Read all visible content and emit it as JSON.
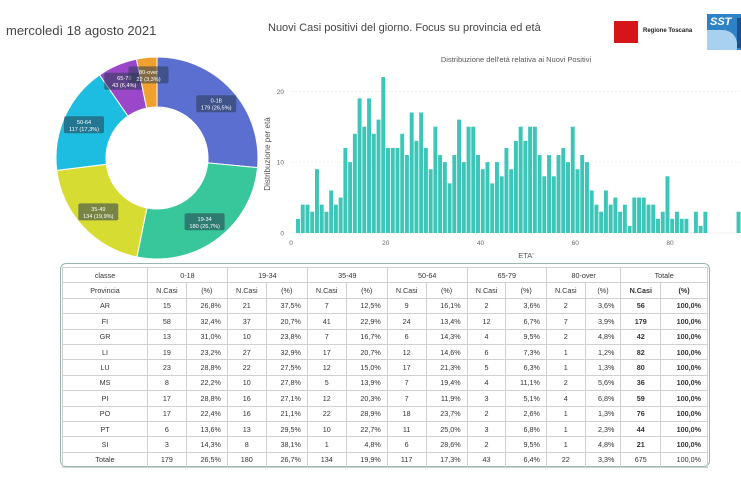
{
  "header": {
    "date": "mercoledì 18 agosto 2021",
    "title": "Nuovi Casi positivi del giorno. Focus su provincia ed età",
    "logo_regione": "Regione Toscana",
    "logo_sst": "SST"
  },
  "colors": {
    "donut": [
      "#5b6fd0",
      "#37c79b",
      "#d7dc33",
      "#1cbde0",
      "#9b47c9",
      "#f0a02c"
    ],
    "histogram": "#3cc6b7",
    "table_border": "#9bb5b0"
  },
  "chart_data": [
    {
      "type": "pie",
      "subtype": "donut",
      "slices": [
        {
          "label": "0-18",
          "value": 179,
          "text": "179 (26,5%)"
        },
        {
          "label": "19-34",
          "value": 180,
          "text": "180 (26,7%)"
        },
        {
          "label": "35-49",
          "value": 134,
          "text": "134 (19,9%)"
        },
        {
          "label": "50-64",
          "value": 117,
          "text": "117 (17,3%)"
        },
        {
          "label": "65-79",
          "value": 43,
          "text": "43 (6,4%)"
        },
        {
          "label": "80-over",
          "value": 22,
          "text": "22 (3,3%)"
        }
      ]
    },
    {
      "type": "bar",
      "title": "Distribuzione dell'età relativa ai Nuovi Positivi",
      "xlabel": "ETA'",
      "ylabel": "Distribuzione per età",
      "xlim": [
        0,
        95
      ],
      "ylim": [
        0,
        23
      ],
      "xticks": [
        0,
        20,
        40,
        60,
        80
      ],
      "yticks": [
        0,
        10,
        20
      ],
      "grid": true,
      "x": [
        0,
        1,
        2,
        3,
        4,
        5,
        6,
        7,
        8,
        9,
        10,
        11,
        12,
        13,
        14,
        15,
        16,
        17,
        18,
        19,
        20,
        21,
        22,
        23,
        24,
        25,
        26,
        27,
        28,
        29,
        30,
        31,
        32,
        33,
        34,
        35,
        36,
        37,
        38,
        39,
        40,
        41,
        42,
        43,
        44,
        45,
        46,
        47,
        48,
        49,
        50,
        51,
        52,
        53,
        54,
        55,
        56,
        57,
        58,
        59,
        60,
        61,
        62,
        63,
        64,
        65,
        66,
        67,
        68,
        69,
        70,
        71,
        72,
        73,
        74,
        75,
        76,
        77,
        78,
        79,
        80,
        81,
        82,
        83,
        84,
        85,
        86,
        87,
        88,
        89,
        90,
        91,
        92,
        93,
        94
      ],
      "values": [
        0,
        2,
        4,
        4,
        3,
        9,
        4,
        3,
        6,
        4,
        5,
        12,
        10,
        14,
        19,
        15,
        19,
        14,
        16,
        22,
        12,
        12,
        12,
        14,
        11,
        17,
        13,
        17,
        12,
        9,
        15,
        11,
        10,
        7,
        11,
        16,
        10,
        15,
        15,
        11,
        9,
        10,
        7,
        10,
        8,
        12,
        9,
        13,
        15,
        13,
        15,
        15,
        11,
        8,
        11,
        8,
        11,
        12,
        10,
        15,
        9,
        11,
        10,
        6,
        4,
        3,
        6,
        4,
        5,
        3,
        4,
        1,
        5,
        5,
        5,
        4,
        4,
        2,
        3,
        8,
        2,
        3,
        2,
        2,
        0,
        3,
        1,
        3,
        0,
        0,
        0,
        0,
        0,
        0,
        3
      ]
    }
  ],
  "table": {
    "headers_group": [
      "classe",
      "0-18",
      "19-34",
      "35-49",
      "50-64",
      "65-79",
      "80-over",
      "Totale"
    ],
    "headers_sub": [
      "Provincia",
      "N.Casi",
      "(%)",
      "N.Casi",
      "(%)",
      "N.Casi",
      "(%)",
      "N.Casi",
      "(%)",
      "N.Casi",
      "(%)",
      "N.Casi",
      "(%)",
      "N.Casi",
      "(%)"
    ],
    "rows": [
      [
        "AR",
        "15",
        "26,8%",
        "21",
        "37,5%",
        "7",
        "12,5%",
        "9",
        "16,1%",
        "2",
        "3,6%",
        "2",
        "3,6%",
        "56",
        "100,0%"
      ],
      [
        "FI",
        "58",
        "32,4%",
        "37",
        "20,7%",
        "41",
        "22,9%",
        "24",
        "13,4%",
        "12",
        "6,7%",
        "7",
        "3,9%",
        "179",
        "100,0%"
      ],
      [
        "GR",
        "13",
        "31,0%",
        "10",
        "23,8%",
        "7",
        "16,7%",
        "6",
        "14,3%",
        "4",
        "9,5%",
        "2",
        "4,8%",
        "42",
        "100,0%"
      ],
      [
        "LI",
        "19",
        "23,2%",
        "27",
        "32,9%",
        "17",
        "20,7%",
        "12",
        "14,6%",
        "6",
        "7,3%",
        "1",
        "1,2%",
        "82",
        "100,0%"
      ],
      [
        "LU",
        "23",
        "28,8%",
        "22",
        "27,5%",
        "12",
        "15,0%",
        "17",
        "21,3%",
        "5",
        "6,3%",
        "1",
        "1,3%",
        "80",
        "100,0%"
      ],
      [
        "MS",
        "8",
        "22,2%",
        "10",
        "27,8%",
        "5",
        "13,9%",
        "7",
        "19,4%",
        "4",
        "11,1%",
        "2",
        "5,6%",
        "36",
        "100,0%"
      ],
      [
        "PI",
        "17",
        "28,8%",
        "16",
        "27,1%",
        "12",
        "20,3%",
        "7",
        "11,9%",
        "3",
        "5,1%",
        "4",
        "6,8%",
        "59",
        "100,0%"
      ],
      [
        "PO",
        "17",
        "22,4%",
        "16",
        "21,1%",
        "22",
        "28,9%",
        "18",
        "23,7%",
        "2",
        "2,6%",
        "1",
        "1,3%",
        "76",
        "100,0%"
      ],
      [
        "PT",
        "6",
        "13,6%",
        "13",
        "29,5%",
        "10",
        "22,7%",
        "11",
        "25,0%",
        "3",
        "6,8%",
        "1",
        "2,3%",
        "44",
        "100,0%"
      ],
      [
        "SI",
        "3",
        "14,3%",
        "8",
        "38,1%",
        "1",
        "4,8%",
        "6",
        "28,6%",
        "2",
        "9,5%",
        "1",
        "4,8%",
        "21",
        "100,0%"
      ]
    ],
    "total": [
      "Totale",
      "179",
      "26,5%",
      "180",
      "26,7%",
      "134",
      "19,9%",
      "117",
      "17,3%",
      "43",
      "6,4%",
      "22",
      "3,3%",
      "675",
      "100,0%"
    ]
  }
}
